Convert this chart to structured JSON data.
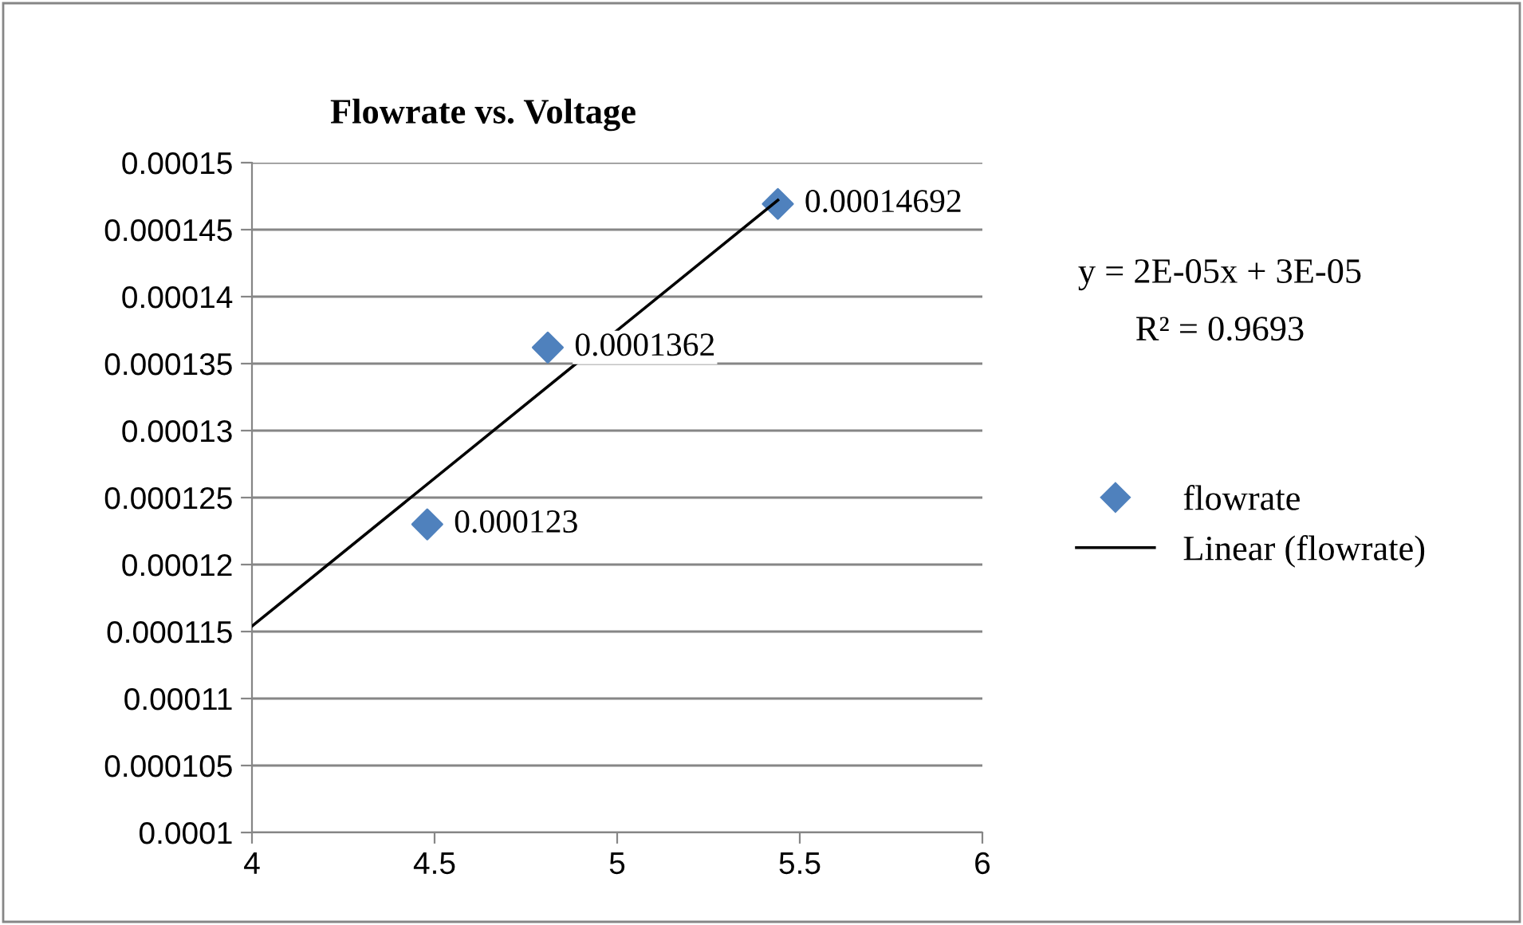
{
  "chart_data": {
    "type": "scatter",
    "title": "Flowrate vs. Voltage",
    "series": [
      {
        "name": "flowrate",
        "color": "#4f81bd",
        "marker": "diamond",
        "x": [
          4.48,
          4.81,
          5.44
        ],
        "values": [
          0.000123,
          0.0001362,
          0.00014692
        ],
        "value_labels": [
          "0.000123",
          "0.0001362",
          "0.00014692"
        ]
      },
      {
        "name": "Linear (flowrate)",
        "type": "line",
        "color": "#000000",
        "marker": "none",
        "line_style": "solid",
        "x": [
          4,
          5.44
        ],
        "values": [
          0.0001154,
          0.0001472
        ]
      }
    ],
    "xlim": [
      4,
      6
    ],
    "xticks": [
      4,
      4.5,
      5,
      5.5,
      6
    ],
    "ylim": [
      0.0001,
      0.00015
    ],
    "yticks": [
      {
        "value": 0.0001,
        "label": "0.0001"
      },
      {
        "value": 0.000105,
        "label": "0.000105"
      },
      {
        "value": 0.00011,
        "label": "0.00011"
      },
      {
        "value": 0.000115,
        "label": "0.000115"
      },
      {
        "value": 0.00012,
        "label": "0.00012"
      },
      {
        "value": 0.000125,
        "label": "0.000125"
      },
      {
        "value": 0.00013,
        "label": "0.00013"
      },
      {
        "value": 0.000135,
        "label": "0.000135"
      },
      {
        "value": 0.00014,
        "label": "0.00014"
      },
      {
        "value": 0.000145,
        "label": "0.000145"
      },
      {
        "value": 0.00015,
        "label": "0.00015"
      }
    ],
    "grid": "y",
    "legend": "right",
    "annotations": [
      "y = 2E-05x + 3E-05",
      "R² = 0.9693"
    ]
  }
}
